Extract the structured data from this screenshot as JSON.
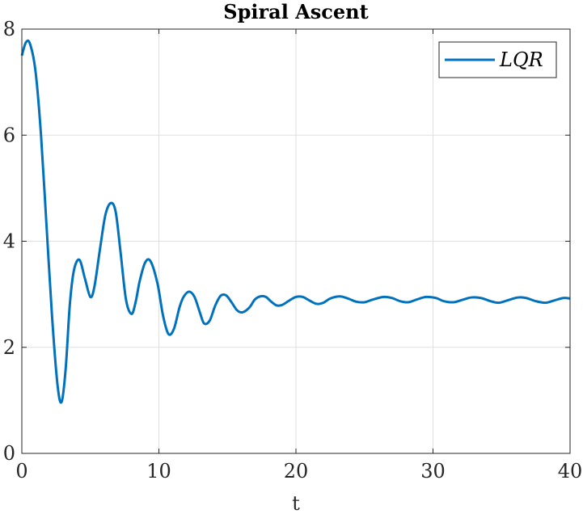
{
  "chart_data": {
    "type": "line",
    "title": "Spiral Ascent",
    "xlabel": "t",
    "ylabel": "",
    "xlim": [
      0,
      40
    ],
    "ylim": [
      0,
      8
    ],
    "xticks": [
      "0",
      "10",
      "20",
      "30",
      "40"
    ],
    "yticks": [
      "0",
      "2",
      "4",
      "6",
      "8"
    ],
    "grid": true,
    "legend_position": "top-right",
    "series": [
      {
        "name": "LQR",
        "color": "#0072BD",
        "x": [
          0,
          0.3,
          0.6,
          1.0,
          1.4,
          1.8,
          2.2,
          2.6,
          2.9,
          3.2,
          3.5,
          3.8,
          4.2,
          4.6,
          5.0,
          5.3,
          5.7,
          6.1,
          6.5,
          6.85,
          7.2,
          7.6,
          8.0,
          8.3,
          8.6,
          9.0,
          9.4,
          9.9,
          10.3,
          10.7,
          11.1,
          11.5,
          11.8,
          12.2,
          12.6,
          13.0,
          13.3,
          13.7,
          14.1,
          14.5,
          14.9,
          15.3,
          15.7,
          16.1,
          16.6,
          17.0,
          17.4,
          17.8,
          18.2,
          18.6,
          19.0,
          19.5,
          20.0,
          20.5,
          21.0,
          21.5,
          22.0,
          22.5,
          23.2,
          23.8,
          24.4,
          25.0,
          25.6,
          26.4,
          27.0,
          27.6,
          28.2,
          28.8,
          29.5,
          30.2,
          30.8,
          31.5,
          32.2,
          32.8,
          33.5,
          34.2,
          34.8,
          35.5,
          36.2,
          36.8,
          37.5,
          38.2,
          38.8,
          39.5,
          40.0
        ],
        "values": [
          7.5,
          7.75,
          7.72,
          7.2,
          6.0,
          4.3,
          2.6,
          1.3,
          0.97,
          1.6,
          2.8,
          3.45,
          3.65,
          3.3,
          2.95,
          3.15,
          3.85,
          4.5,
          4.72,
          4.55,
          3.8,
          2.9,
          2.63,
          2.85,
          3.25,
          3.6,
          3.62,
          3.2,
          2.6,
          2.25,
          2.35,
          2.75,
          2.95,
          3.05,
          2.95,
          2.65,
          2.45,
          2.5,
          2.78,
          2.97,
          2.98,
          2.85,
          2.7,
          2.66,
          2.75,
          2.9,
          2.96,
          2.95,
          2.86,
          2.79,
          2.8,
          2.88,
          2.95,
          2.95,
          2.88,
          2.82,
          2.84,
          2.92,
          2.96,
          2.92,
          2.86,
          2.85,
          2.9,
          2.95,
          2.93,
          2.87,
          2.85,
          2.9,
          2.95,
          2.93,
          2.87,
          2.85,
          2.9,
          2.94,
          2.93,
          2.87,
          2.84,
          2.89,
          2.94,
          2.93,
          2.87,
          2.84,
          2.88,
          2.93,
          2.92
        ]
      }
    ]
  }
}
